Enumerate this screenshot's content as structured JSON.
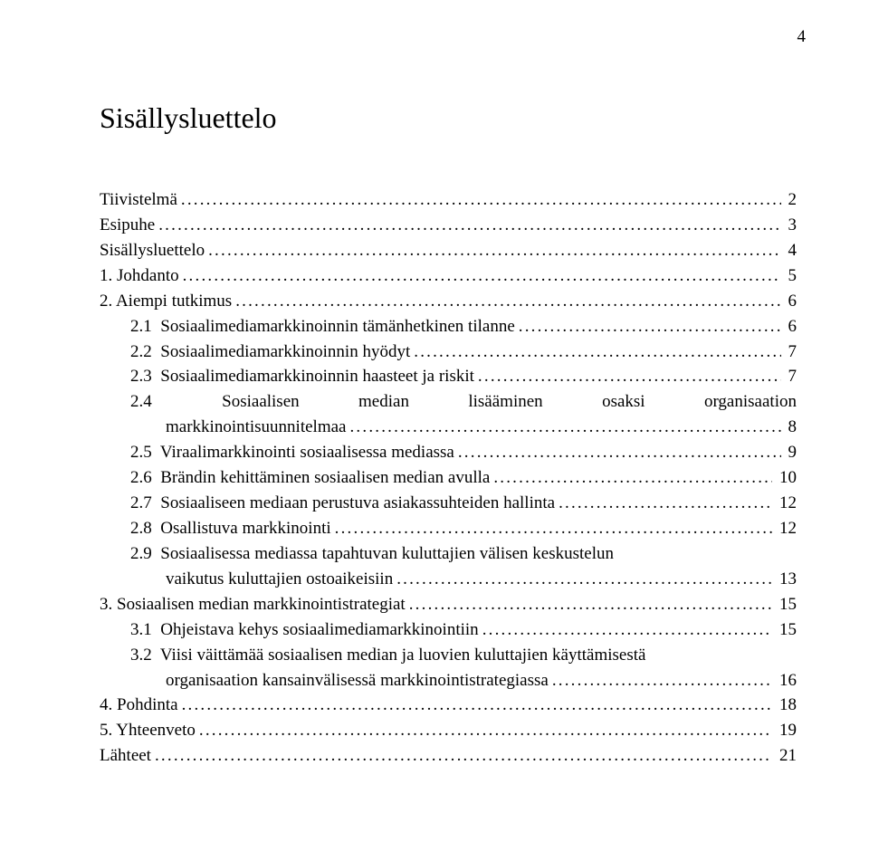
{
  "page_number_top": "4",
  "title": "Sisällysluettelo",
  "colors": {
    "text": "#000000",
    "background": "#ffffff"
  },
  "typography": {
    "font_family": "Times New Roman",
    "title_fontsize_pt": 24,
    "body_fontsize_pt": 14
  },
  "toc": [
    {
      "indent": 0,
      "label": "Tiivistelmä",
      "page": "2"
    },
    {
      "indent": 0,
      "label": "Esipuhe",
      "page": "3"
    },
    {
      "indent": 0,
      "label": "Sisällysluettelo",
      "page": "4"
    },
    {
      "indent": 0,
      "label": "1. Johdanto",
      "page": "5"
    },
    {
      "indent": 0,
      "label": "2. Aiempi tutkimus",
      "page": "6"
    },
    {
      "indent": 1,
      "label": "2.1  Sosiaalimediamarkkinoinnin tämänhetkinen tilanne",
      "page": "6"
    },
    {
      "indent": 1,
      "label": "2.2  Sosiaalimediamarkkinoinnin hyödyt",
      "page": "7"
    },
    {
      "indent": 1,
      "label": "2.3  Sosiaalimediamarkkinoinnin haasteet ja riskit",
      "page": "7"
    },
    {
      "indent": 1,
      "type": "justified_wrap",
      "first_words": [
        "2.4",
        "Sosiaalisen",
        "median",
        "lisääminen",
        "osaksi",
        "organisaation"
      ],
      "rest": "markkinointisuunnitelmaa",
      "page": "8"
    },
    {
      "indent": 1,
      "label": "2.5  Viraalimarkkinointi sosiaalisessa mediassa",
      "page": "9"
    },
    {
      "indent": 1,
      "label": "2.6  Brändin kehittäminen sosiaalisen median avulla",
      "page": "10"
    },
    {
      "indent": 1,
      "label": "2.7  Sosiaaliseen mediaan perustuva asiakassuhteiden hallinta",
      "page": "12"
    },
    {
      "indent": 1,
      "label": "2.8  Osallistuva markkinointi",
      "page": "12"
    },
    {
      "indent": 1,
      "type": "wrap",
      "first": "2.9  Sosiaalisessa mediassa tapahtuvan kuluttajien välisen keskustelun",
      "rest": "vaikutus kuluttajien ostoaikeisiin",
      "page": "13"
    },
    {
      "indent": 0,
      "label": "3. Sosiaalisen median markkinointistrategiat",
      "page": "15"
    },
    {
      "indent": 1,
      "label": "3.1  Ohjeistava kehys sosiaalimediamarkkinointiin",
      "page": "15"
    },
    {
      "indent": 1,
      "type": "wrap",
      "first": "3.2  Viisi väittämää sosiaalisen median ja luovien kuluttajien käyttämisestä",
      "rest": "organisaation kansainvälisessä markkinointistrategiassa",
      "page": "16"
    },
    {
      "indent": 0,
      "label": "4. Pohdinta",
      "page": "18"
    },
    {
      "indent": 0,
      "label": "5. Yhteenveto",
      "page": "19"
    },
    {
      "indent": 0,
      "label": "Lähteet",
      "page": "21"
    }
  ]
}
